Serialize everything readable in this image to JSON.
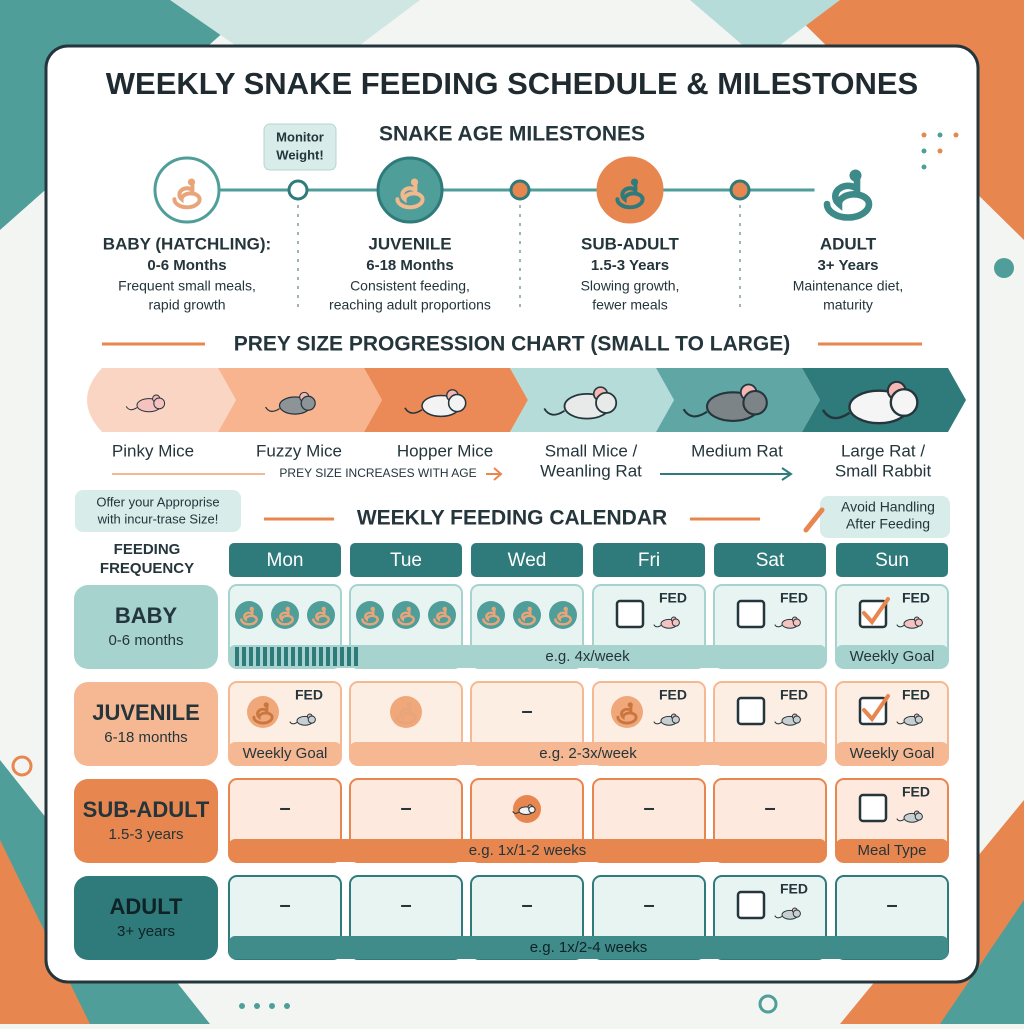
{
  "title": "WEEKLY SNAKE FEEDING SCHEDULE & MILESTONES",
  "milestones": {
    "heading": "SNAKE AGE MILESTONES",
    "callout": [
      "Monitor",
      "Weight!"
    ],
    "stages": [
      {
        "name": "BABY (HATCHLING):",
        "age": "0-6 Months",
        "description": [
          "Frequent small meals,",
          "rapid growth"
        ]
      },
      {
        "name": "JUVENILE",
        "age": "6-18 Months",
        "description": [
          "Consistent feeding,",
          "reaching adult proportions"
        ]
      },
      {
        "name": "SUB-ADULT",
        "age": "1.5-3 Years",
        "description": [
          "Slowing growth,",
          "fewer meals"
        ]
      },
      {
        "name": "ADULT",
        "age": "3+ Years",
        "description": [
          "Maintenance diet,",
          "maturity"
        ]
      }
    ]
  },
  "prey": {
    "heading": "PREY SIZE PROGRESSION CHART (SMALL TO LARGE)",
    "items": [
      [
        "Pinky Mice"
      ],
      [
        "Fuzzy Mice"
      ],
      [
        "Hopper Mice"
      ],
      [
        "Small Mice /",
        "Weanling Rat"
      ],
      [
        "Medium Rat"
      ],
      [
        "Large Rat /",
        "Small Rabbit"
      ]
    ],
    "note": "PREY SIZE INCREASES WITH AGE"
  },
  "calendar": {
    "heading": "WEEKLY FEEDING CALENDAR",
    "tip_left": [
      "Offer your Approprise",
      "with incur-trase Size!"
    ],
    "tip_right": [
      "Avoid Handling",
      "After Feeding"
    ],
    "row_header": [
      "FEEDING",
      "FREQUENCY"
    ],
    "days": [
      "Mon",
      "Tue",
      "Wed",
      "Fri",
      "Sat",
      "Sun"
    ],
    "rows": [
      {
        "stage": "BABY",
        "age": "0-6 months",
        "frequency": "e.g. 4x/week",
        "cells": [
          {
            "kind": "meals"
          },
          {
            "kind": "meals"
          },
          {
            "kind": "meals"
          },
          {
            "kind": "box",
            "text": "FED"
          },
          {
            "kind": "box",
            "text": "FED"
          },
          {
            "kind": "box-checked",
            "text": "FED",
            "note": "Weekly Goal"
          }
        ]
      },
      {
        "stage": "JUVENILE",
        "age": "6-18 months",
        "frequency": "e.g. 2-3x/week",
        "cells": [
          {
            "kind": "meal-fed",
            "text": "FED",
            "note": "Weekly Goal"
          },
          {
            "kind": "meal"
          },
          {
            "kind": "empty",
            "text": "–"
          },
          {
            "kind": "meal-fed",
            "text": "FED"
          },
          {
            "kind": "box",
            "text": "FED"
          },
          {
            "kind": "box-checked",
            "text": "FED",
            "note": "Weekly Goal"
          }
        ]
      },
      {
        "stage": "SUB-ADULT",
        "age": "1.5-3 years",
        "frequency": "e.g. 1x/1-2 weeks",
        "cells": [
          {
            "kind": "empty",
            "text": "–"
          },
          {
            "kind": "empty",
            "text": "–"
          },
          {
            "kind": "prey"
          },
          {
            "kind": "empty",
            "text": "–"
          },
          {
            "kind": "empty",
            "text": "–"
          },
          {
            "kind": "box",
            "text": "FED",
            "note": "Meal Type"
          }
        ]
      },
      {
        "stage": "ADULT",
        "age": "3+ years",
        "frequency": "e.g. 1x/2-4 weeks",
        "cells": [
          {
            "kind": "empty",
            "text": "–"
          },
          {
            "kind": "empty",
            "text": "–"
          },
          {
            "kind": "empty",
            "text": "–"
          },
          {
            "kind": "empty",
            "text": "–"
          },
          {
            "kind": "box",
            "text": "FED"
          },
          {
            "kind": "empty",
            "text": "–"
          }
        ]
      }
    ]
  }
}
